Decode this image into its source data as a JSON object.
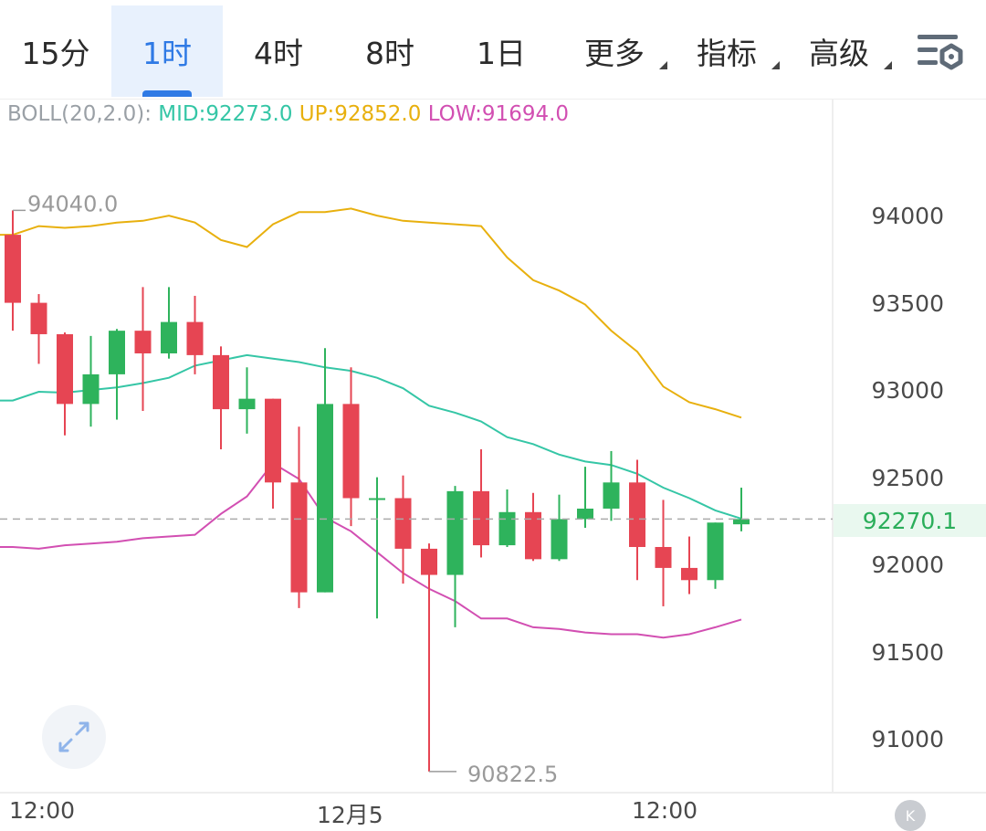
{
  "tabs": [
    {
      "label": "15分",
      "active": false,
      "dropdown": false
    },
    {
      "label": "1时",
      "active": true,
      "dropdown": false
    },
    {
      "label": "4时",
      "active": false,
      "dropdown": false
    },
    {
      "label": "8时",
      "active": false,
      "dropdown": false
    },
    {
      "label": "1日",
      "active": false,
      "dropdown": false
    },
    {
      "label": "更多",
      "active": false,
      "dropdown": true
    },
    {
      "label": "指标",
      "active": false,
      "dropdown": true
    },
    {
      "label": "高级",
      "active": false,
      "dropdown": true
    }
  ],
  "icons": {
    "settings": "chart-settings-icon",
    "expand": "expand-icon",
    "badge": "k-logo-icon"
  },
  "legend": {
    "name": "BOLL(20,2.0):",
    "mid": "MID:92273.0",
    "up": "UP:92852.0",
    "low": "LOW:91694.0"
  },
  "current_price": "92270.1",
  "badge_text": "K",
  "colors": {
    "up": "#2eb35c",
    "down": "#e64553",
    "mid": "#35c6a6",
    "upper": "#e8b00e",
    "lower": "#d24fb2",
    "active_tab": "#2f7ae5"
  },
  "chart_data": {
    "type": "candlestick",
    "y_ticks": [
      "94000",
      "93500",
      "93000",
      "92500",
      "92000",
      "91500",
      "91000"
    ],
    "x_ticks": [
      "12:00",
      "12月5",
      "12:00"
    ],
    "ylim": [
      90750,
      94650
    ],
    "high_marker": "94040.0",
    "low_marker": "90822.5",
    "candles": [
      {
        "o": 93900,
        "h": 94040,
        "l": 93350,
        "c": 93510
      },
      {
        "o": 93510,
        "h": 93560,
        "l": 93160,
        "c": 93330
      },
      {
        "o": 93330,
        "h": 93340,
        "l": 92750,
        "c": 92930
      },
      {
        "o": 92930,
        "h": 93320,
        "l": 92800,
        "c": 93100
      },
      {
        "o": 93100,
        "h": 93360,
        "l": 92840,
        "c": 93350
      },
      {
        "o": 93350,
        "h": 93600,
        "l": 92890,
        "c": 93220
      },
      {
        "o": 93220,
        "h": 93600,
        "l": 93190,
        "c": 93400
      },
      {
        "o": 93400,
        "h": 93550,
        "l": 93100,
        "c": 93210
      },
      {
        "o": 93210,
        "h": 93260,
        "l": 92670,
        "c": 92900
      },
      {
        "o": 92900,
        "h": 93140,
        "l": 92760,
        "c": 92960
      },
      {
        "o": 92960,
        "h": 92960,
        "l": 92330,
        "c": 92480
      },
      {
        "o": 92480,
        "h": 92800,
        "l": 91760,
        "c": 91850
      },
      {
        "o": 91850,
        "h": 93250,
        "l": 91850,
        "c": 92930
      },
      {
        "o": 92930,
        "h": 93140,
        "l": 92230,
        "c": 92390
      },
      {
        "o": 92390,
        "h": 92510,
        "l": 91700,
        "c": 92390
      },
      {
        "o": 92390,
        "h": 92520,
        "l": 91900,
        "c": 92100
      },
      {
        "o": 92100,
        "h": 92130,
        "l": 90822.5,
        "c": 91950
      },
      {
        "o": 91950,
        "h": 92460,
        "l": 91650,
        "c": 92430
      },
      {
        "o": 92430,
        "h": 92670,
        "l": 92050,
        "c": 92120
      },
      {
        "o": 92120,
        "h": 92440,
        "l": 92110,
        "c": 92310
      },
      {
        "o": 92310,
        "h": 92420,
        "l": 92030,
        "c": 92040
      },
      {
        "o": 92040,
        "h": 92410,
        "l": 92030,
        "c": 92270
      },
      {
        "o": 92270,
        "h": 92570,
        "l": 92220,
        "c": 92330
      },
      {
        "o": 92330,
        "h": 92660,
        "l": 92260,
        "c": 92480
      },
      {
        "o": 92480,
        "h": 92610,
        "l": 91920,
        "c": 92110
      },
      {
        "o": 92110,
        "h": 92380,
        "l": 91770,
        "c": 91990
      },
      {
        "o": 91990,
        "h": 92170,
        "l": 91840,
        "c": 91920
      },
      {
        "o": 91920,
        "h": 92250,
        "l": 91870,
        "c": 92250
      },
      {
        "o": 92240,
        "h": 92450,
        "l": 92200,
        "c": 92270.1
      }
    ],
    "series": [
      {
        "name": "MID",
        "values": [
          92950,
          93000,
          92995,
          93010,
          93025,
          93050,
          93080,
          93150,
          93180,
          93210,
          93190,
          93170,
          93140,
          93120,
          93080,
          93020,
          92920,
          92880,
          92830,
          92740,
          92700,
          92640,
          92600,
          92580,
          92530,
          92450,
          92390,
          92320,
          92273
        ]
      },
      {
        "name": "UP",
        "values": [
          93900,
          93950,
          93940,
          93950,
          93970,
          93980,
          94010,
          93970,
          93870,
          93830,
          93960,
          94030,
          94030,
          94050,
          94010,
          93980,
          93970,
          93960,
          93950,
          93770,
          93640,
          93580,
          93500,
          93350,
          93230,
          93030,
          92940,
          92900,
          92852
        ]
      },
      {
        "name": "LOW",
        "values": [
          92110,
          92100,
          92120,
          92130,
          92140,
          92160,
          92170,
          92180,
          92300,
          92400,
          92590,
          92500,
          92280,
          92200,
          92080,
          91960,
          91870,
          91800,
          91700,
          91700,
          91650,
          91640,
          91620,
          91610,
          91610,
          91590,
          91610,
          91650,
          91694
        ]
      }
    ]
  }
}
